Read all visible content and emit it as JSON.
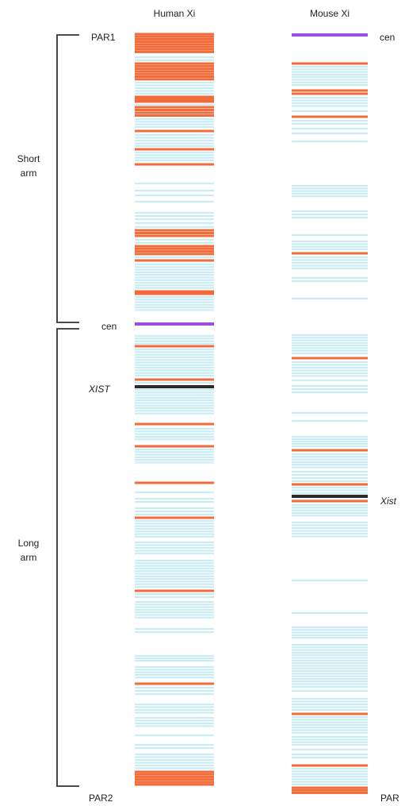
{
  "columns": {
    "human": "Human Xi",
    "mouse": "Mouse Xi"
  },
  "labels": {
    "par1": "PAR1",
    "par2": "PAR2",
    "par_mouse": "PAR",
    "cen_human": "cen",
    "cen_mouse": "cen",
    "xist_human": "XIST",
    "xist_mouse": "Xist",
    "short_arm": [
      "Short",
      "arm"
    ],
    "long_arm": [
      "Long",
      "arm"
    ]
  },
  "colors": {
    "escape_gene": "#f26b3a",
    "silenced_gene": "#c9ecf5",
    "centromere": "#9b4de0",
    "xist_locus": "#2b2b2b",
    "bracket": "#333333"
  },
  "legend_map": {
    "o": "escape_gene",
    "b": "silenced_gene",
    "c": "centromere",
    "k": "xist_locus"
  }
}
